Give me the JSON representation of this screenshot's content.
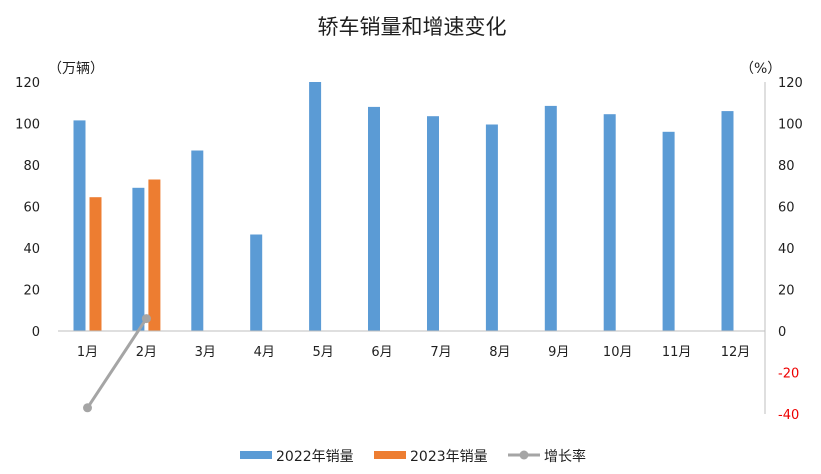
{
  "chart_data": {
    "type": "bar",
    "title": "轿车销量和增速变化",
    "categories": [
      "1月",
      "2月",
      "3月",
      "4月",
      "5月",
      "6月",
      "7月",
      "8月",
      "9月",
      "10月",
      "11月",
      "12月"
    ],
    "series": [
      {
        "name": "2022年销量",
        "type": "bar",
        "axis": "left",
        "color": "#5b9bd5",
        "values": [
          101.5,
          69,
          87,
          46.5,
          120,
          108,
          103.5,
          99.5,
          108.5,
          104.5,
          96,
          106
        ]
      },
      {
        "name": "2023年销量",
        "type": "bar",
        "axis": "left",
        "color": "#ed7d31",
        "values": [
          64.5,
          73,
          null,
          null,
          null,
          null,
          null,
          null,
          null,
          null,
          null,
          null
        ]
      },
      {
        "name": "增长率",
        "type": "line",
        "axis": "right",
        "color": "#a5a5a5",
        "values": [
          -37,
          6,
          null,
          null,
          null,
          null,
          null,
          null,
          null,
          null,
          null,
          null
        ]
      }
    ],
    "y_left": {
      "label": "（万辆）",
      "ylim": [
        0,
        120
      ],
      "ticks": [
        "0",
        "20",
        "40",
        "60",
        "80",
        "100",
        "120"
      ]
    },
    "y_right": {
      "label": "（%）",
      "ylim": [
        -40,
        120
      ],
      "ticks": [
        "-40",
        "-20",
        "0",
        "20",
        "40",
        "60",
        "80",
        "100",
        "120"
      ],
      "negative_tick_color": "#ee0000"
    },
    "grid": false,
    "legend_position": "bottom"
  }
}
